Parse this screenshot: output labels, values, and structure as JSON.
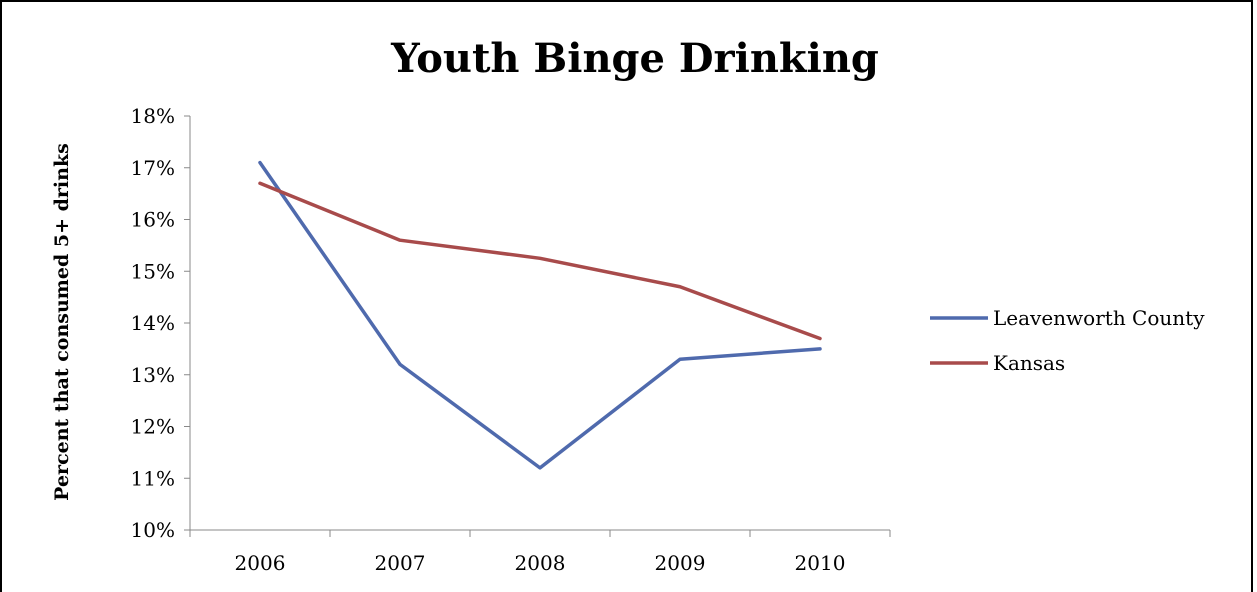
{
  "chart_data": {
    "type": "line",
    "title": "Youth Binge Drinking",
    "xlabel": "",
    "ylabel": "Percent that consumed 5+ drinks",
    "categories": [
      "2006",
      "2007",
      "2008",
      "2009",
      "2010"
    ],
    "ylim": [
      10,
      18
    ],
    "yticks": [
      "10%",
      "11%",
      "12%",
      "13%",
      "14%",
      "15%",
      "16%",
      "17%",
      "18%"
    ],
    "grid": false,
    "legend_position": "right",
    "series": [
      {
        "name": "Leavenworth County",
        "color": "#4f6aad",
        "values": [
          17.1,
          13.2,
          11.2,
          13.3,
          13.5
        ]
      },
      {
        "name": "Kansas",
        "color": "#a84b4b",
        "values": [
          16.7,
          15.6,
          15.25,
          14.7,
          13.7
        ]
      }
    ]
  }
}
